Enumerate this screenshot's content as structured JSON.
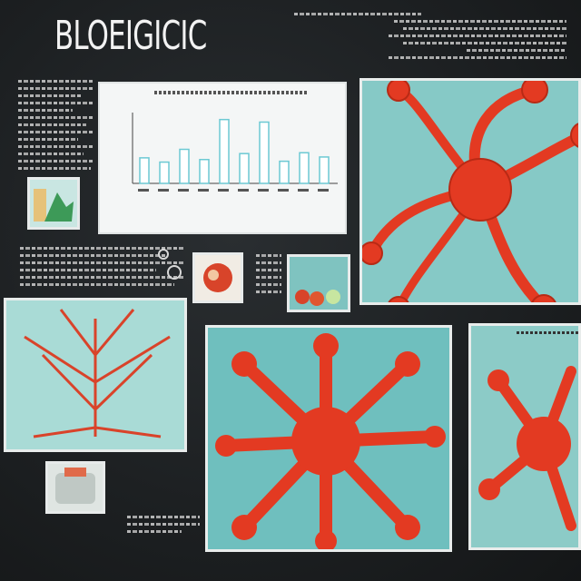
{
  "header": {
    "title": "BLOEIGICIC"
  },
  "colors": {
    "background": "#1e2123",
    "accent": "#e23b22",
    "panel_bg": "#7fc3c0",
    "frame": "#e8eceb",
    "bar": "#6cc9d3"
  },
  "chart_data": {
    "type": "bar",
    "values": [
      3,
      2.5,
      4,
      2.8,
      7.5,
      3.5,
      7.2,
      2.6,
      3.6,
      3.1
    ]
  }
}
